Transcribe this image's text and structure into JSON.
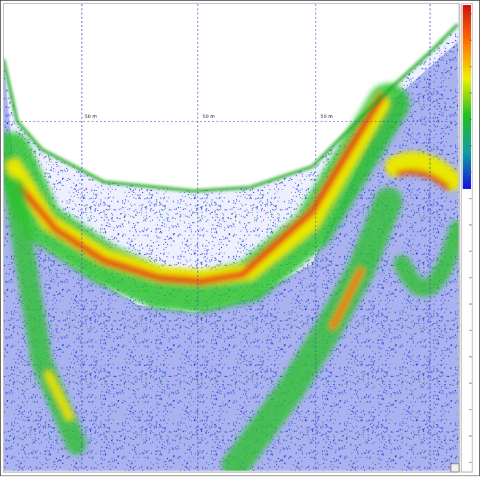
{
  "grid_labels": [
    "50 m",
    "50 m",
    "50 m"
  ]
}
